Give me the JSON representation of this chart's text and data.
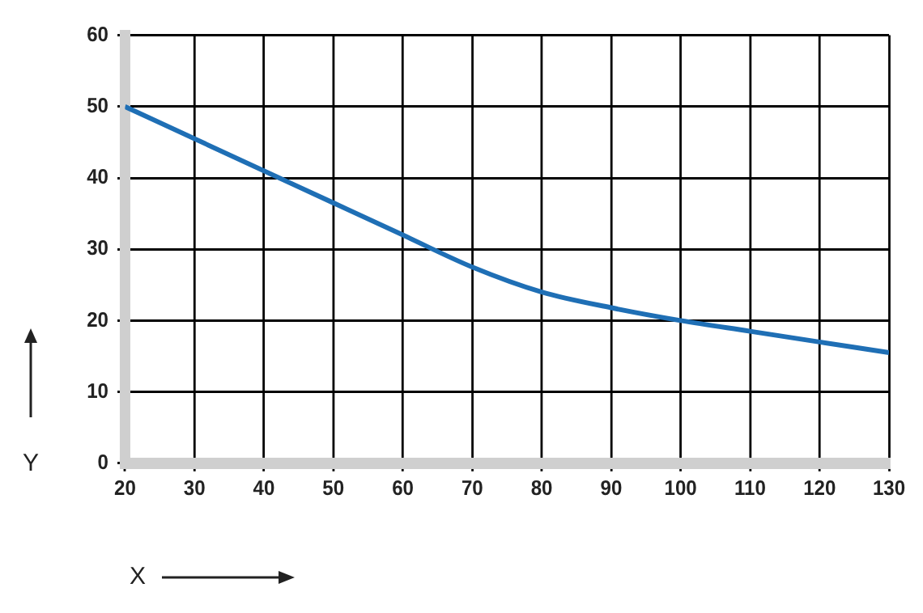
{
  "chart_data": {
    "type": "line",
    "xlabel": "X",
    "ylabel": "Y",
    "series": [
      {
        "color": "#1f6fb5",
        "x": [
          20,
          30,
          40,
          50,
          60,
          70,
          80,
          90,
          100,
          110,
          120,
          130
        ],
        "values": [
          50,
          45.5,
          41,
          36.5,
          32,
          27.5,
          24,
          21.8,
          20,
          18.5,
          17,
          15.5
        ]
      }
    ],
    "xlim": [
      20,
      130
    ],
    "xticks": [
      20,
      30,
      40,
      50,
      60,
      70,
      80,
      90,
      100,
      110,
      120,
      130
    ],
    "ylim": [
      0,
      60
    ],
    "yticks": [
      0,
      10,
      20,
      30,
      40,
      50,
      60
    ],
    "grid": true,
    "legend": false,
    "marker": "none",
    "line_style": "solid"
  }
}
